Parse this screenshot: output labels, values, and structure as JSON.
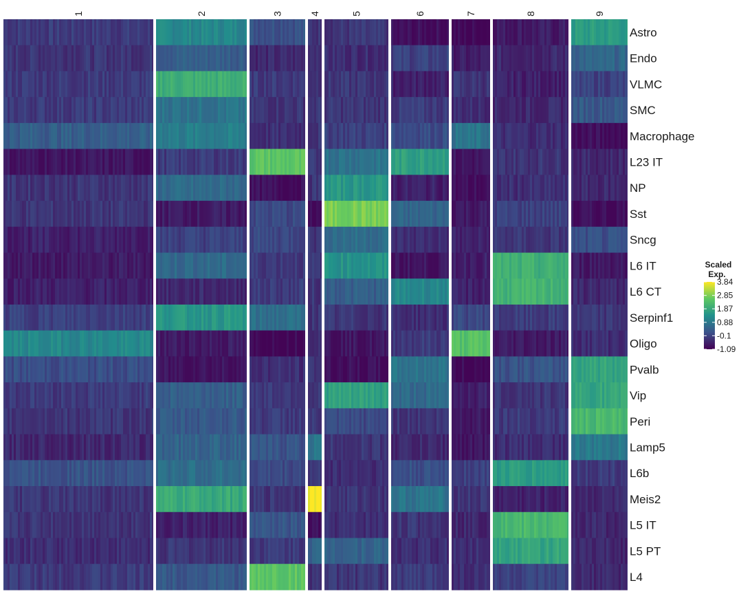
{
  "chart_data": {
    "type": "heatmap",
    "title": "",
    "xlabel": "",
    "ylabel": "",
    "clusters": [
      "1",
      "2",
      "3",
      "4",
      "5",
      "6",
      "7",
      "8",
      "9"
    ],
    "rows": [
      "Astro",
      "Endo",
      "VLMC",
      "SMC",
      "Macrophage",
      "L23 IT",
      "NP",
      "Sst",
      "Sncg",
      "L6 IT",
      "L6 CT",
      "Serpinf1",
      "Oligo",
      "Pvalb",
      "Vip",
      "Peri",
      "Lamp5",
      "L6b",
      "Meis2",
      "L5 IT",
      "L5 PT",
      "L4"
    ],
    "values": [
      [
        -0.2,
        1.2,
        0.2,
        -0.3,
        -0.3,
        -0.9,
        -1.0,
        -0.7,
        1.6
      ],
      [
        -0.3,
        0.4,
        -0.5,
        -0.3,
        -0.4,
        -0.1,
        -0.7,
        -0.5,
        0.5
      ],
      [
        -0.2,
        2.0,
        -0.2,
        -0.3,
        -0.3,
        -0.6,
        -0.3,
        -0.6,
        -0.1
      ],
      [
        -0.2,
        0.8,
        -0.3,
        -0.3,
        -0.3,
        -0.2,
        -0.4,
        -0.5,
        0.3
      ],
      [
        0.4,
        1.0,
        -0.4,
        -0.3,
        -0.1,
        0.1,
        0.8,
        -0.4,
        -0.9
      ],
      [
        -0.8,
        -0.2,
        2.5,
        -0.3,
        0.8,
        1.7,
        -0.8,
        -0.3,
        -0.5
      ],
      [
        -0.3,
        0.6,
        -0.9,
        -0.3,
        1.5,
        -0.6,
        -0.9,
        -0.4,
        -0.5
      ],
      [
        -0.3,
        -0.7,
        0.0,
        -0.9,
        2.8,
        0.5,
        -0.7,
        -0.1,
        -0.9
      ],
      [
        -0.6,
        -0.1,
        0.0,
        -0.3,
        0.7,
        -0.4,
        -0.6,
        -0.3,
        0.1
      ],
      [
        -0.7,
        0.6,
        -0.2,
        -0.3,
        1.4,
        -0.8,
        -0.6,
        2.0,
        -0.7
      ],
      [
        -0.6,
        -0.5,
        -0.2,
        -0.3,
        0.4,
        1.2,
        -0.6,
        2.1,
        -0.5
      ],
      [
        -0.1,
        1.5,
        0.7,
        -0.3,
        -0.3,
        -0.4,
        0.0,
        -0.2,
        -0.3
      ],
      [
        1.2,
        -0.7,
        -1.0,
        -0.3,
        -0.8,
        -0.2,
        2.4,
        -0.7,
        -0.4
      ],
      [
        0.1,
        -0.8,
        -0.4,
        -0.3,
        -0.9,
        0.8,
        -1.0,
        0.2,
        1.8
      ],
      [
        -0.2,
        0.4,
        -0.2,
        -0.3,
        1.7,
        0.6,
        -0.6,
        -0.3,
        1.8
      ],
      [
        -0.3,
        0.3,
        -0.2,
        -0.3,
        0.0,
        -0.3,
        -0.7,
        -0.2,
        2.2
      ],
      [
        -0.5,
        0.5,
        0.2,
        0.8,
        -0.3,
        -0.5,
        -0.8,
        -0.4,
        0.9
      ],
      [
        0.2,
        0.7,
        0.0,
        -0.3,
        -0.4,
        0.1,
        -0.1,
        1.6,
        -0.2
      ],
      [
        -0.3,
        1.9,
        -0.3,
        3.84,
        -0.3,
        0.8,
        -0.3,
        -0.6,
        -0.5
      ],
      [
        -0.3,
        -0.6,
        0.2,
        -0.9,
        -0.4,
        -0.3,
        -0.5,
        2.2,
        -0.5
      ],
      [
        -0.4,
        -0.3,
        -0.2,
        0.5,
        0.5,
        -0.4,
        -0.4,
        1.8,
        -0.5
      ],
      [
        -0.2,
        0.3,
        2.5,
        -0.3,
        -0.3,
        -0.2,
        -0.4,
        -0.1,
        -0.5
      ]
    ],
    "legend": {
      "title_line1": "Scaled",
      "title_line2": "Exp.",
      "ticks": [
        "3.84",
        "2.85",
        "1.87",
        "0.88",
        "-0.1",
        "-1.09"
      ],
      "min": -1.09,
      "max": 3.84,
      "placement": "right"
    },
    "colorscale": [
      "#440154",
      "#3b528b",
      "#21918c",
      "#5ec962",
      "#fde725"
    ],
    "grid": false
  }
}
